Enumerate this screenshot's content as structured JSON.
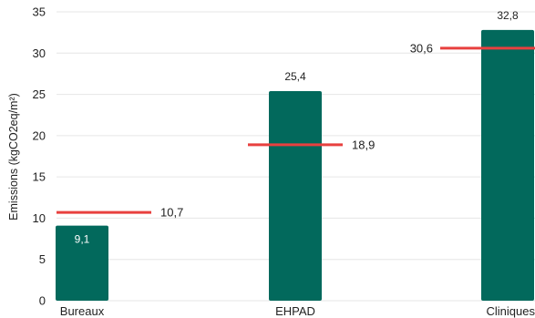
{
  "chart_data": {
    "type": "bar",
    "ylabel": "Emissions (kgCO2eq/m²)",
    "ylim": [
      0,
      35
    ],
    "yticks": [
      0,
      5,
      10,
      15,
      20,
      25,
      30,
      35
    ],
    "grid": true,
    "categories": [
      "Bureaux",
      "EHPAD",
      "Cliniques"
    ],
    "values": [
      9.1,
      25.4,
      32.8
    ],
    "value_labels": [
      "9,1",
      "25,4",
      "32,8"
    ],
    "reference_values": [
      10.7,
      18.9,
      30.6
    ],
    "reference_labels": [
      "10,7",
      "18,9",
      "30,6"
    ],
    "colors": {
      "bar": "#02695C",
      "reference": "#E8403F",
      "grid": "#E6E6E6"
    }
  }
}
